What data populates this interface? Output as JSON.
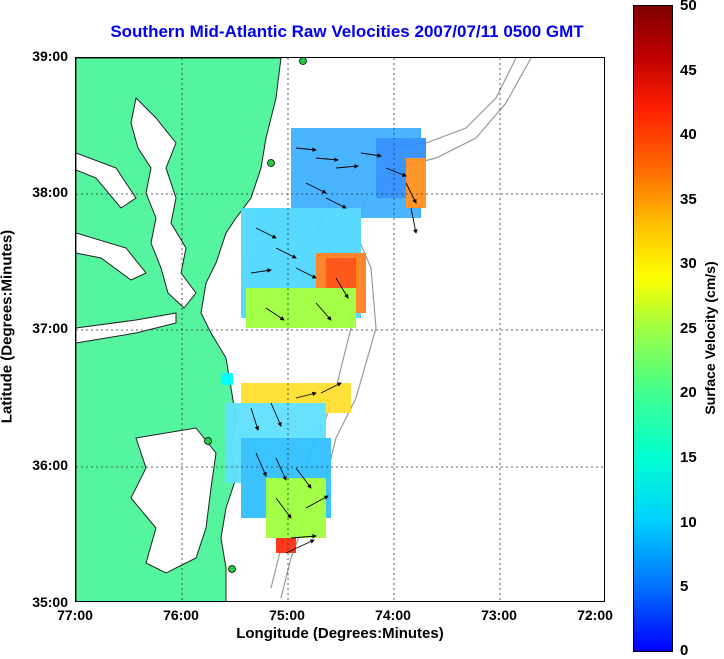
{
  "title": "Southern Mid-Atlantic Raw Velocities 2007/07/11 0500 GMT",
  "xlabel": "Longitude (Degrees:Minutes)",
  "ylabel": "Latitude (Degrees:Minutes)",
  "colorbar_label": "Surface Velocity (cm/s)",
  "x_ticks": [
    "77:00",
    "76:00",
    "75:00",
    "74:00",
    "73:00",
    "72:00"
  ],
  "y_ticks": [
    "39:00",
    "38:00",
    "37:00",
    "36:00",
    "35:00"
  ],
  "colorbar_ticks": [
    "50",
    "45",
    "40",
    "35",
    "30",
    "25",
    "20",
    "15",
    "10",
    "5",
    "0"
  ],
  "colors": {
    "land": "#55f5a0",
    "title": "#0000ee",
    "coast_line": "#222222",
    "bathymetry": "#999999"
  },
  "chart_data": {
    "type": "heatmap",
    "title": "Southern Mid-Atlantic Raw Velocities 2007/07/11 0500 GMT",
    "xlabel": "Longitude (Degrees:Minutes)",
    "ylabel": "Latitude (Degrees:Minutes)",
    "xlim": [
      -77,
      -72
    ],
    "ylim": [
      35,
      39
    ],
    "colorbar": {
      "label": "Surface Velocity (cm/s)",
      "range": [
        0,
        50
      ]
    },
    "grid": true
  }
}
